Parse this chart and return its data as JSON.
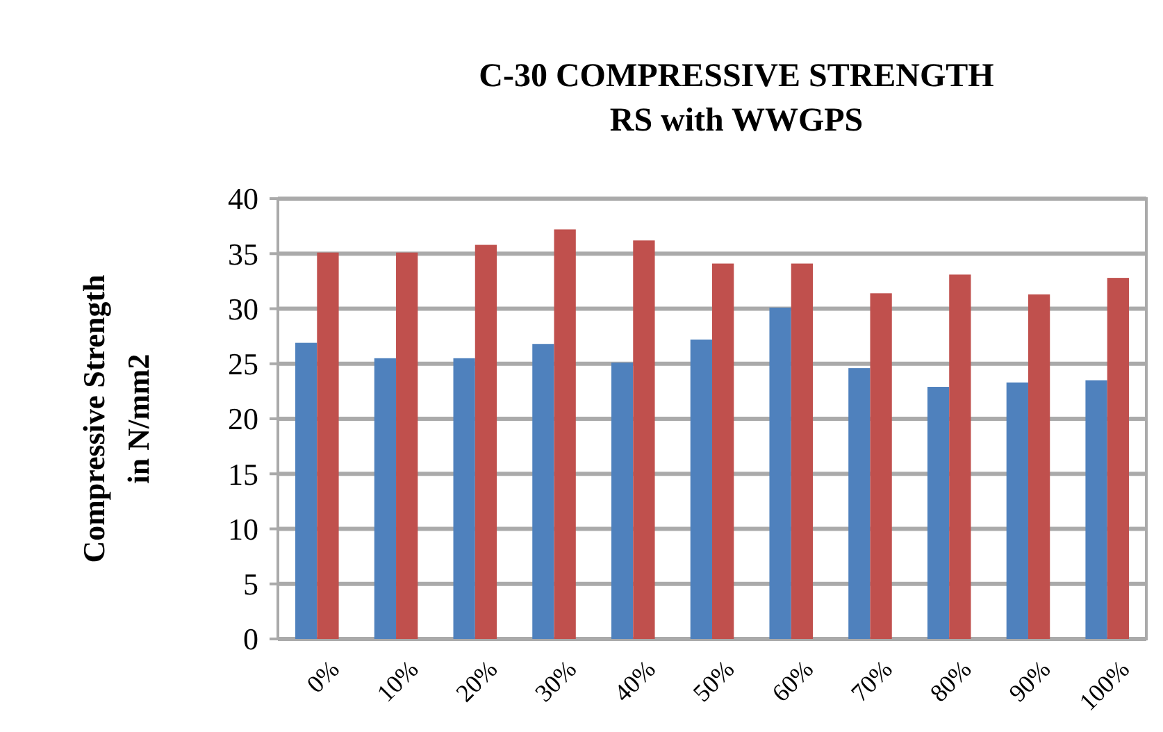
{
  "chart_data": {
    "type": "bar",
    "title": "C-30 COMPRESSIVE STRENGTH\nRS with WWGPS",
    "ylabel": "Compressive Strength\nin N/mm2",
    "categories": [
      "0%",
      "10%",
      "20%",
      "30%",
      "40%",
      "50%",
      "60%",
      "70%",
      "80%",
      "90%",
      "100%"
    ],
    "series": [
      {
        "color": "#4f81bd",
        "values": [
          26.9,
          25.5,
          25.5,
          26.8,
          25.1,
          27.2,
          30.1,
          24.6,
          22.9,
          23.3,
          23.5
        ]
      },
      {
        "color": "#c0504d",
        "values": [
          35.1,
          35.1,
          35.8,
          37.2,
          36.2,
          34.1,
          34.1,
          31.4,
          33.1,
          31.3,
          32.8
        ]
      }
    ],
    "ylim": [
      0,
      40
    ],
    "yticks": [
      0,
      5,
      10,
      15,
      20,
      25,
      30,
      35,
      40
    ],
    "grid": "y"
  }
}
